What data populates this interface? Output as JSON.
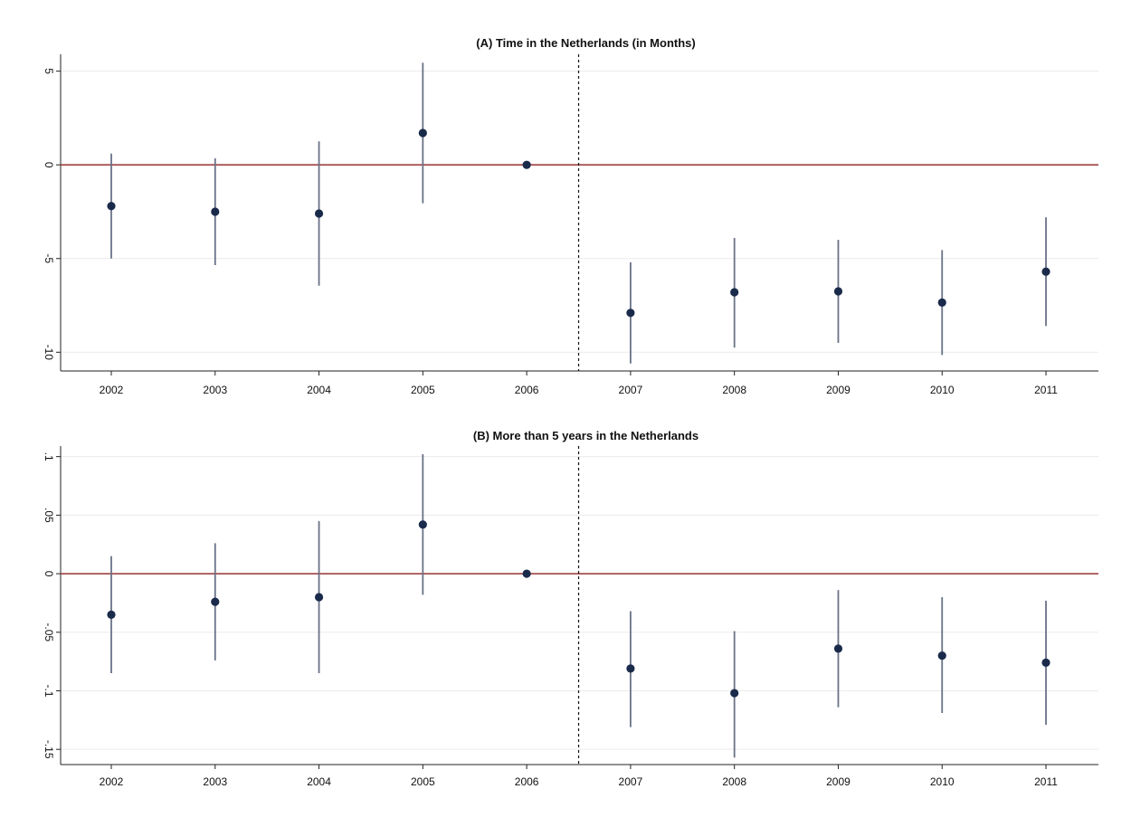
{
  "chart_data": [
    {
      "type": "scatter",
      "subtype": "coefficient-plot-with-confidence-intervals",
      "title": "(A) Time in the Netherlands (in Months)",
      "categories": [
        "2002",
        "2003",
        "2004",
        "2005",
        "2006",
        "2007",
        "2008",
        "2009",
        "2010",
        "2011"
      ],
      "estimates": [
        -2.2,
        -2.5,
        -2.6,
        1.7,
        0.0,
        -7.9,
        -6.8,
        -6.75,
        -7.35,
        -5.7
      ],
      "ci_lower": [
        -5.0,
        -5.35,
        -6.45,
        -2.05,
        0.0,
        -10.6,
        -9.75,
        -9.5,
        -10.15,
        -8.6
      ],
      "ci_upper": [
        0.6,
        0.35,
        1.25,
        5.45,
        0.0,
        -5.2,
        -3.9,
        -4.0,
        -4.55,
        -2.8
      ],
      "yticks": [
        5,
        0,
        -5,
        -10
      ],
      "ytick_labels": [
        "5",
        "0",
        "-5",
        "-10"
      ],
      "ylim": [
        -11.0,
        5.9
      ],
      "reference_line": {
        "y": 0,
        "color": "#a04040"
      },
      "event_line_between": [
        "2006",
        "2007"
      ],
      "marker_color": "#1a2a4a",
      "grid": true
    },
    {
      "type": "scatter",
      "subtype": "coefficient-plot-with-confidence-intervals",
      "title": "(B) More than 5 years in the Netherlands",
      "categories": [
        "2002",
        "2003",
        "2004",
        "2005",
        "2006",
        "2007",
        "2008",
        "2009",
        "2010",
        "2011"
      ],
      "estimates": [
        -0.035,
        -0.024,
        -0.02,
        0.042,
        0.0,
        -0.081,
        -0.102,
        -0.064,
        -0.07,
        -0.076
      ],
      "ci_lower": [
        -0.085,
        -0.074,
        -0.085,
        -0.018,
        0.0,
        -0.131,
        -0.157,
        -0.114,
        -0.119,
        -0.129
      ],
      "ci_upper": [
        0.015,
        0.026,
        0.045,
        0.102,
        0.0,
        -0.032,
        -0.049,
        -0.014,
        -0.02,
        -0.023
      ],
      "yticks": [
        0.1,
        0.05,
        0,
        -0.05,
        -0.1,
        -0.15
      ],
      "ytick_labels": [
        ".1",
        ".05",
        "0",
        "-.05",
        "-.1",
        "-.15"
      ],
      "ylim": [
        -0.163,
        0.109
      ],
      "reference_line": {
        "y": 0,
        "color": "#a04040"
      },
      "event_line_between": [
        "2006",
        "2007"
      ],
      "marker_color": "#1a2a4a",
      "grid": true
    }
  ]
}
